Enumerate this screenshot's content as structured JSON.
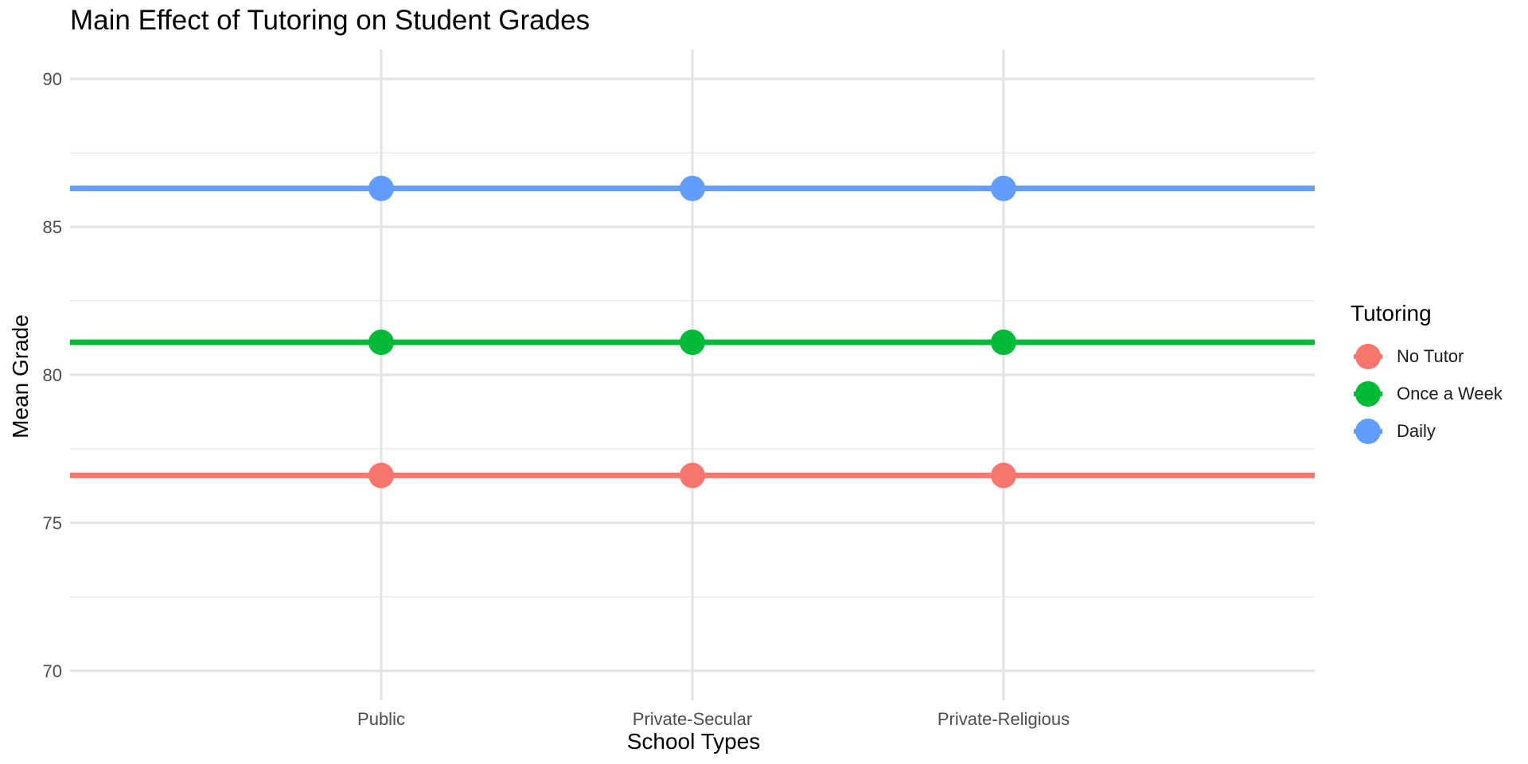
{
  "chart_data": {
    "type": "line",
    "title": "Main Effect of Tutoring on Student Grades",
    "xlabel": "School Types",
    "ylabel": "Mean Grade",
    "categories": [
      "Public",
      "Private-Secular",
      "Private-Religious"
    ],
    "ylim": [
      69,
      91
    ],
    "yticks": [
      70,
      75,
      80,
      85,
      90
    ],
    "grid": true,
    "legend": {
      "title": "Tutoring",
      "position": "right"
    },
    "series": [
      {
        "name": "No Tutor",
        "color": "#F8766D",
        "values": [
          76.6,
          76.6,
          76.6
        ]
      },
      {
        "name": "Once a Week",
        "color": "#00BA38",
        "values": [
          81.1,
          81.1,
          81.1
        ]
      },
      {
        "name": "Daily",
        "color": "#619CFF",
        "values": [
          86.3,
          86.3,
          86.3
        ]
      }
    ]
  }
}
